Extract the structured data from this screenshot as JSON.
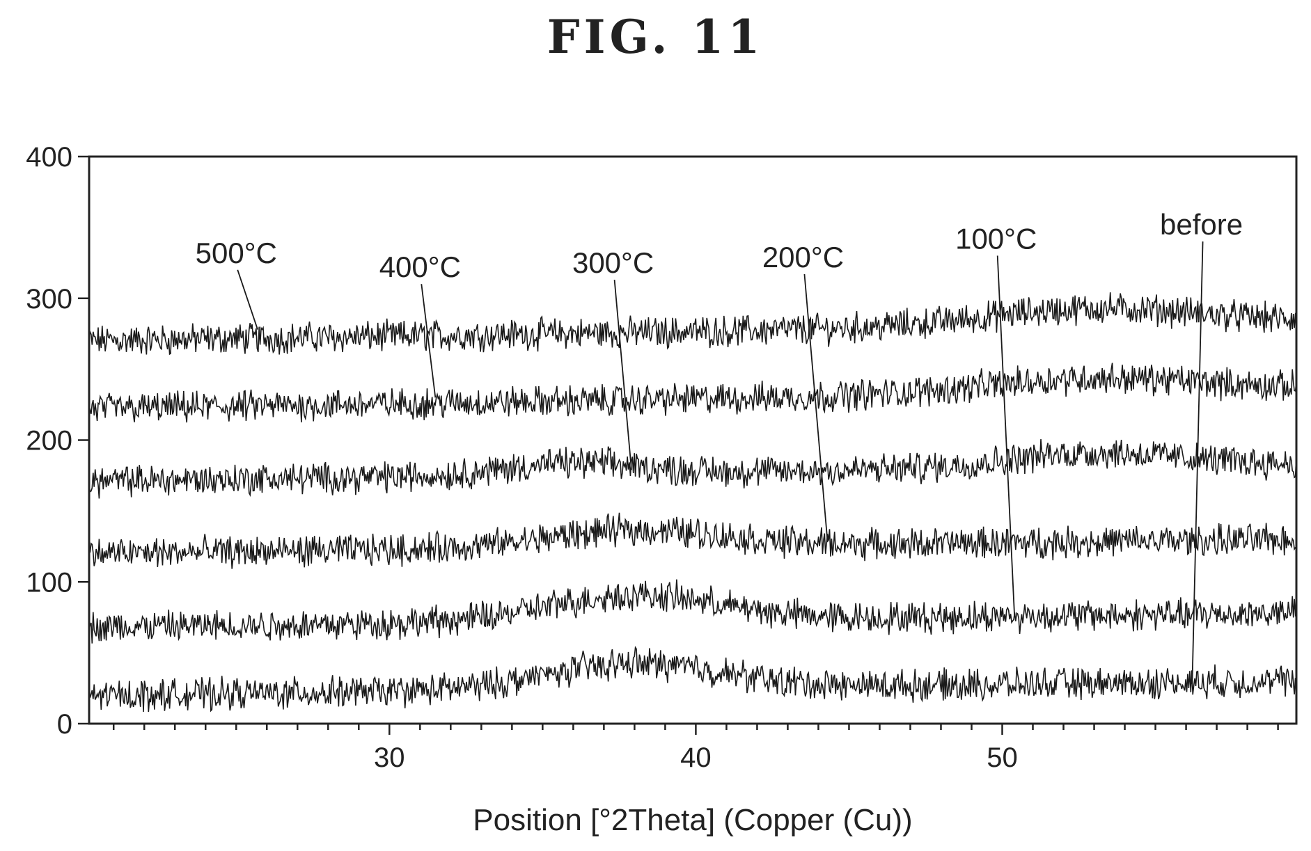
{
  "figure_title": "FIG.  11",
  "chart_data": {
    "type": "line",
    "xlabel": "Position [°2Theta] (Copper (Cu))",
    "ylabel": "",
    "xlim": [
      20.2,
      59.6
    ],
    "ylim": [
      0,
      400
    ],
    "x_ticks": [
      30,
      40,
      50
    ],
    "y_ticks": [
      0,
      100,
      200,
      300,
      400
    ],
    "grid": false,
    "series": [
      {
        "name": "500°C",
        "baseline": 270,
        "end_level": 283,
        "hump": [
          {
            "center": 53,
            "width": 5,
            "height": 12
          }
        ],
        "pointer": {
          "label_x": 25.0,
          "label_y": 325,
          "curve_x": 25.7
        }
      },
      {
        "name": "400°C",
        "baseline": 222,
        "end_level": 236,
        "hump": [
          {
            "center": 53,
            "width": 5,
            "height": 10
          }
        ],
        "pointer": {
          "label_x": 31.0,
          "label_y": 315,
          "curve_x": 31.5
        }
      },
      {
        "name": "300°C",
        "baseline": 171,
        "end_level": 183,
        "hump": [
          {
            "center": 36,
            "width": 3,
            "height": 8
          },
          {
            "center": 53,
            "width": 4,
            "height": 10
          }
        ],
        "pointer": {
          "label_x": 37.3,
          "label_y": 318,
          "curve_x": 37.9
        }
      },
      {
        "name": "200°C",
        "baseline": 120,
        "end_level": 130,
        "hump": [
          {
            "center": 38,
            "width": 4,
            "height": 12
          }
        ],
        "pointer": {
          "label_x": 43.5,
          "label_y": 322,
          "curve_x": 44.3
        }
      },
      {
        "name": "100°C",
        "baseline": 68,
        "end_level": 78,
        "hump": [
          {
            "center": 38,
            "width": 4,
            "height": 18
          }
        ],
        "pointer": {
          "label_x": 49.8,
          "label_y": 335,
          "curve_x": 50.4
        }
      },
      {
        "name": "before",
        "baseline": 20,
        "end_level": 30,
        "hump": [
          {
            "center": 38,
            "width": 4,
            "height": 18
          }
        ],
        "pointer": {
          "label_x": 56.5,
          "label_y": 345,
          "curve_x": 56.2
        }
      }
    ]
  }
}
